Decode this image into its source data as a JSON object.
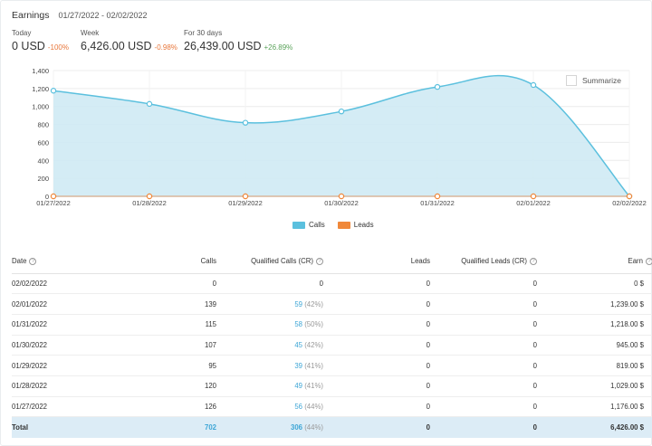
{
  "header": {
    "title": "Earnings",
    "date_range": "01/27/2022 - 02/02/2022"
  },
  "stats": [
    {
      "label": "Today",
      "value": "0 USD",
      "change": "-100%",
      "trend": "down"
    },
    {
      "label": "Week",
      "value": "6,426.00 USD",
      "change": "-0.98%",
      "trend": "down"
    },
    {
      "label": "For 30 days",
      "value": "26,439.00 USD",
      "change": "+26.89%",
      "trend": "up"
    }
  ],
  "summarize_label": "Summarize",
  "legend": {
    "calls": "Calls",
    "leads": "Leads"
  },
  "colors": {
    "calls": "#5bc0de",
    "calls_fill": "#cfeaf4",
    "leads": "#f0883a",
    "positive": "#5ba35b",
    "negative": "#e8763a",
    "link": "#3ea6d6"
  },
  "chart_data": {
    "type": "area",
    "x": [
      "01/27/2022",
      "01/28/2022",
      "01/29/2022",
      "01/30/2022",
      "01/31/2022",
      "02/01/2022",
      "02/02/2022"
    ],
    "series": [
      {
        "name": "Calls",
        "values": [
          1176,
          1029,
          819,
          945,
          1218,
          1239,
          0
        ]
      },
      {
        "name": "Leads",
        "values": [
          0,
          0,
          0,
          0,
          0,
          0,
          0
        ]
      }
    ],
    "yticks": [
      "1,400",
      "1,200",
      "1,000",
      "800",
      "600",
      "400",
      "200",
      "0"
    ],
    "ylim": [
      0,
      1400
    ],
    "grid": true,
    "legend_position": "bottom"
  },
  "table": {
    "headers": {
      "date": "Date",
      "calls": "Calls",
      "qualified_calls": "Qualified Calls (CR)",
      "leads": "Leads",
      "qualified_leads": "Qualified Leads (CR)",
      "earn": "Earn"
    },
    "help_icon": "?",
    "rows": [
      {
        "date": "02/02/2022",
        "calls": "0",
        "qc": "0",
        "cr": "",
        "leads": "0",
        "ql": "0",
        "earn": "0 $"
      },
      {
        "date": "02/01/2022",
        "calls": "139",
        "qc": "59",
        "cr": "(42%)",
        "leads": "0",
        "ql": "0",
        "earn": "1,239.00 $"
      },
      {
        "date": "01/31/2022",
        "calls": "115",
        "qc": "58",
        "cr": "(50%)",
        "leads": "0",
        "ql": "0",
        "earn": "1,218.00 $"
      },
      {
        "date": "01/30/2022",
        "calls": "107",
        "qc": "45",
        "cr": "(42%)",
        "leads": "0",
        "ql": "0",
        "earn": "945.00 $"
      },
      {
        "date": "01/29/2022",
        "calls": "95",
        "qc": "39",
        "cr": "(41%)",
        "leads": "0",
        "ql": "0",
        "earn": "819.00 $"
      },
      {
        "date": "01/28/2022",
        "calls": "120",
        "qc": "49",
        "cr": "(41%)",
        "leads": "0",
        "ql": "0",
        "earn": "1,029.00 $"
      },
      {
        "date": "01/27/2022",
        "calls": "126",
        "qc": "56",
        "cr": "(44%)",
        "leads": "0",
        "ql": "0",
        "earn": "1,176.00 $"
      }
    ],
    "total": {
      "label": "Total",
      "calls": "702",
      "qc": "306",
      "cr": "(44%)",
      "leads": "0",
      "ql": "0",
      "earn": "6,426.00 $"
    }
  }
}
